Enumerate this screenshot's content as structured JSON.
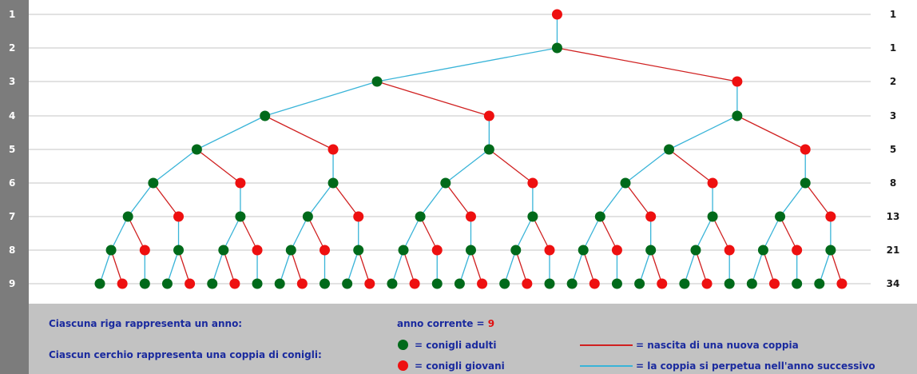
{
  "years": [
    "1",
    "2",
    "3",
    "4",
    "5",
    "6",
    "7",
    "8",
    "9"
  ],
  "counts": [
    "1",
    "1",
    "2",
    "3",
    "5",
    "8",
    "13",
    "21",
    "34"
  ],
  "colors": {
    "adult": "#006a1a",
    "young": "#ee1010",
    "birth_line": "#d02020",
    "continue_line": "#39b4d8",
    "grid": "#c4c4c4",
    "legend_text": "#1a2a9e",
    "current_year": "#e01010"
  },
  "legend": {
    "row_meaning": "Ciascuna riga rappresenta un anno:",
    "circle_meaning": "Ciascun cerchio rappresenta una coppia di conigli:",
    "current_year_label": "anno corrente =",
    "current_year_value": "9",
    "adult_label": "= conigli adulti",
    "young_label": "= conigli giovani",
    "birth_label": "= nascita di una nuova coppia",
    "continue_label": "= la coppia si perpetua nell'anno successivo"
  }
}
